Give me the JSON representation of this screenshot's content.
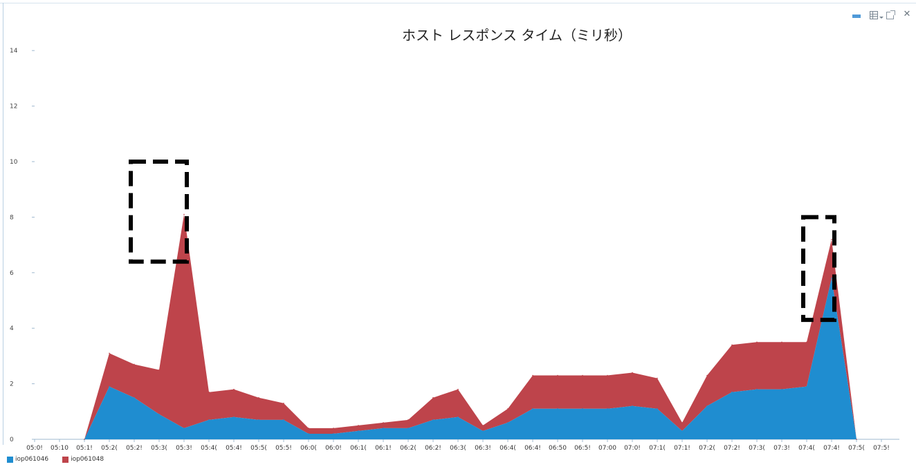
{
  "chart_data": {
    "type": "area",
    "stacked": true,
    "title": "ホスト レスポンス タイム（ミリ秒）",
    "xlabel": "",
    "ylabel": "",
    "ylim": [
      0,
      15
    ],
    "yticks": [
      0,
      2,
      4,
      6,
      8,
      10,
      12,
      14
    ],
    "grid": false,
    "legend_position": "bottom-left",
    "x": [
      "05:05",
      "05:10",
      "05:15",
      "05:20",
      "05:25",
      "05:30",
      "05:35",
      "05:40",
      "05:45",
      "05:50",
      "05:55",
      "06:00",
      "06:05",
      "06:10",
      "06:15",
      "06:20",
      "06:25",
      "06:30",
      "06:35",
      "06:40",
      "06:45",
      "06:50",
      "06:55",
      "07:00",
      "07:05",
      "07:10",
      "07:15",
      "07:20",
      "07:25",
      "07:30",
      "07:35",
      "07:40",
      "07:45",
      "07:50",
      "07:55"
    ],
    "x_tick_labels": [
      "05:0!",
      "05:10",
      "05:1!",
      "05:2(",
      "05:2!",
      "05:3(",
      "05:3!",
      "05:4(",
      "05:4!",
      "05:5(",
      "05:5!",
      "06:0(",
      "06:0!",
      "06:1(",
      "06:1!",
      "06:2(",
      "06:2!",
      "06:3(",
      "06:3!",
      "06:4(",
      "06:4!",
      "06:50",
      "06:5!",
      "07:00",
      "07:0!",
      "07:1(",
      "07:1!",
      "07:2(",
      "07:2!",
      "07:3(",
      "07:3!",
      "07:4(",
      "07:4!",
      "07:5(",
      "07:5!"
    ],
    "series": [
      {
        "name": "iop061046",
        "color": "#1f8dd0",
        "values": [
          null,
          null,
          0,
          1.9,
          1.5,
          0.9,
          0.4,
          0.7,
          0.8,
          0.7,
          0.7,
          0.2,
          0.2,
          0.3,
          0.4,
          0.4,
          0.7,
          0.8,
          0.3,
          0.6,
          1.1,
          1.1,
          1.1,
          1.1,
          1.2,
          1.1,
          0.3,
          1.2,
          1.7,
          1.8,
          1.8,
          1.9,
          5.8,
          0,
          null
        ]
      },
      {
        "name": "iop061048",
        "color": "#be444b",
        "values": [
          null,
          null,
          0,
          1.2,
          1.2,
          1.6,
          7.7,
          1.0,
          1.0,
          0.8,
          0.6,
          0.2,
          0.2,
          0.2,
          0.2,
          0.3,
          0.8,
          1.0,
          0.2,
          0.5,
          1.2,
          1.2,
          1.2,
          1.2,
          1.2,
          1.1,
          0.3,
          1.1,
          1.7,
          1.7,
          1.7,
          1.6,
          1.4,
          0,
          null
        ]
      }
    ],
    "annotations": [
      {
        "type": "dashed-box",
        "x_from": "05:25",
        "x_to": "05:40",
        "y_from": 6.4,
        "y_to": 10.0
      },
      {
        "type": "dashed-box",
        "x_from": "07:40",
        "x_to": "07:50",
        "y_from": 4.3,
        "y_to": 8.0
      }
    ]
  },
  "toolbar": {
    "icons": [
      "bar-chart-icon",
      "grid-menu-icon",
      "popout-icon",
      "close-icon"
    ],
    "close_glyph": "✕"
  }
}
